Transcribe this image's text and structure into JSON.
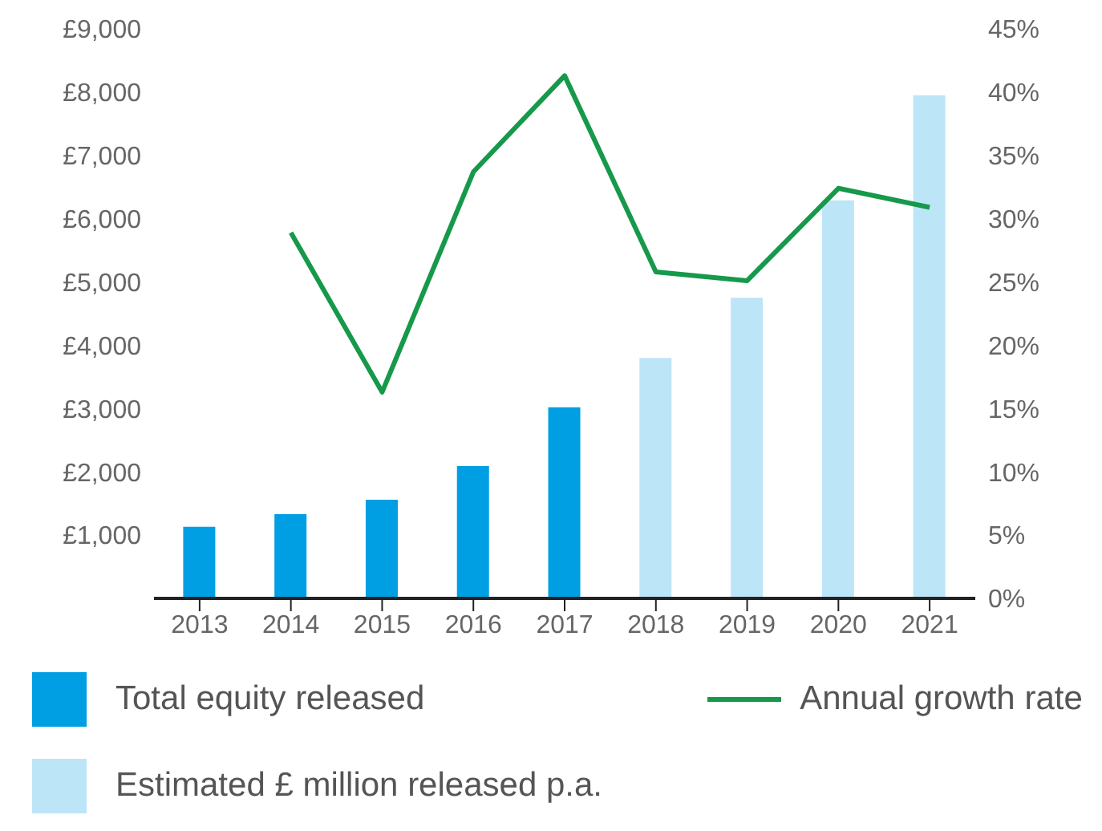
{
  "chart_data": {
    "type": "bar",
    "categories": [
      "2013",
      "2014",
      "2015",
      "2016",
      "2017",
      "2018",
      "2019",
      "2020",
      "2021"
    ],
    "stacked": true,
    "series": [
      {
        "name": "Total equity released",
        "color": "#009fe3",
        "values": [
          1130,
          1330,
          1560,
          2090,
          3020,
          null,
          null,
          null,
          null
        ]
      },
      {
        "name": "Estimated £ million released p.a.",
        "color": "#bde5f8",
        "values": [
          null,
          null,
          null,
          null,
          null,
          3800,
          4750,
          6290,
          7950
        ]
      },
      {
        "name": "Annual growth rate",
        "type": "line",
        "axis": "y2",
        "color": "#16994a",
        "values": [
          null,
          28.9,
          16.3,
          33.7,
          41.3,
          25.8,
          25.1,
          32.4,
          30.9
        ]
      }
    ],
    "ylim": [
      0,
      9000
    ],
    "yticks": [
      {
        "value": 1000,
        "label": "£1,000"
      },
      {
        "value": 2000,
        "label": "£2,000"
      },
      {
        "value": 3000,
        "label": "£3,000"
      },
      {
        "value": 4000,
        "label": "£4,000"
      },
      {
        "value": 5000,
        "label": "£5,000"
      },
      {
        "value": 6000,
        "label": "£6,000"
      },
      {
        "value": 7000,
        "label": "£7,000"
      },
      {
        "value": 8000,
        "label": "£8,000"
      },
      {
        "value": 9000,
        "label": "£9,000"
      }
    ],
    "y2lim": [
      0,
      45
    ],
    "y2ticks": [
      {
        "value": 0,
        "label": "0%"
      },
      {
        "value": 5,
        "label": "5%"
      },
      {
        "value": 10,
        "label": "10%"
      },
      {
        "value": 15,
        "label": "15%"
      },
      {
        "value": 20,
        "label": "20%"
      },
      {
        "value": 25,
        "label": "25%"
      },
      {
        "value": 30,
        "label": "30%"
      },
      {
        "value": 35,
        "label": "35%"
      },
      {
        "value": 40,
        "label": "40%"
      },
      {
        "value": 45,
        "label": "45%"
      }
    ],
    "grid": false,
    "legend": "bottom",
    "marker": "none"
  }
}
